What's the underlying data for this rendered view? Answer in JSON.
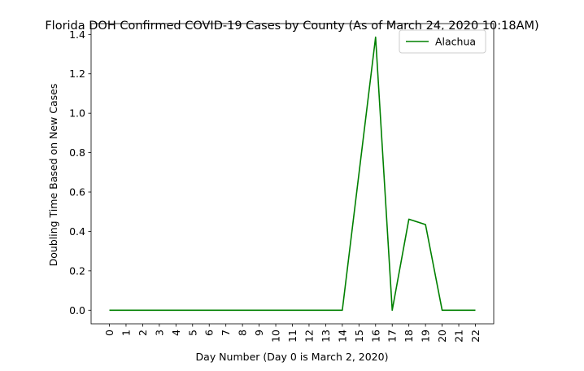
{
  "chart_data": {
    "type": "line",
    "title": "Florida DOH Confirmed COVID-19 Cases by County (As of March 24, 2020 10:18AM)",
    "xlabel": "Day Number (Day 0 is March 2, 2020)",
    "ylabel": "Doubling Time Based on New Cases",
    "x": [
      0,
      1,
      2,
      3,
      4,
      5,
      6,
      7,
      8,
      9,
      10,
      11,
      12,
      13,
      14,
      15,
      16,
      17,
      18,
      19,
      20,
      21,
      22
    ],
    "x_tick_labels": [
      "0",
      "1",
      "2",
      "3",
      "4",
      "5",
      "6",
      "7",
      "8",
      "9",
      "10",
      "11",
      "12",
      "13",
      "14",
      "15",
      "16",
      "17",
      "18",
      "19",
      "20",
      "21",
      "22"
    ],
    "y_ticks": [
      0.0,
      0.2,
      0.4,
      0.6,
      0.8,
      1.0,
      1.2,
      1.4
    ],
    "y_tick_labels": [
      "0.0",
      "0.2",
      "0.4",
      "0.6",
      "0.8",
      "1.0",
      "1.2",
      "1.4"
    ],
    "xlim": [
      -1.1,
      23.1
    ],
    "ylim": [
      -0.069,
      1.455
    ],
    "grid": false,
    "legend_position": "top-right",
    "series": [
      {
        "name": "Alachua",
        "color": "#008000",
        "values": [
          0,
          0,
          0,
          0,
          0,
          0,
          0,
          0,
          0,
          0,
          0,
          0,
          0,
          0,
          0,
          0.693,
          1.386,
          0,
          0.462,
          0.435,
          0,
          0,
          0
        ]
      }
    ]
  }
}
